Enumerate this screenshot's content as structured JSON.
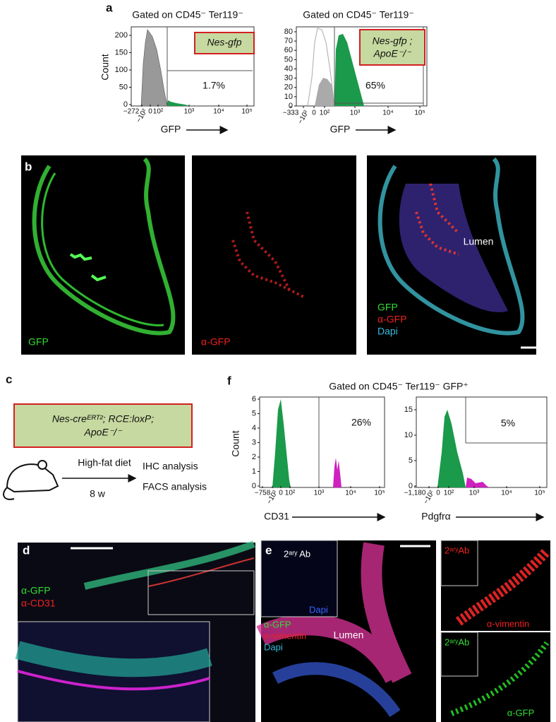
{
  "panel_a": {
    "label": "a",
    "left": {
      "title": "Gated on CD45⁻ Ter119⁻",
      "y_label": "Count",
      "yticks": [
        "0",
        "50",
        "100",
        "150",
        "200"
      ],
      "xticks": [
        "−272",
        "−10²",
        "0",
        "10²",
        "10³",
        "10⁴",
        "10⁵"
      ],
      "x_label": "GFP",
      "sample": "Nes-gfp",
      "gate": "1.7%"
    },
    "right": {
      "title": "Gated on CD45⁻ Ter119⁻",
      "yticks": [
        "0",
        "10",
        "20",
        "30",
        "40",
        "50",
        "60",
        "70",
        "80"
      ],
      "xticks": [
        "−333",
        "−10²",
        "0",
        "10²",
        "10³",
        "10⁴",
        "10⁵"
      ],
      "x_label": "GFP",
      "sample_line1": "Nes-gfp ;",
      "sample_line2": "ApoE⁻/⁻",
      "gate": "65%"
    }
  },
  "panel_b": {
    "label": "b",
    "image1_label": "GFP",
    "image2_label": "α-GFP",
    "lumen": "Lumen",
    "legend": [
      "GFP",
      "α-GFP",
      "Dapi"
    ]
  },
  "panel_c": {
    "label": "c",
    "genotype_line1": "Nes-creᴱᴿᵀ²; RCE:loxP;",
    "genotype_line2": "ApoE⁻/⁻",
    "diet": "High-fat diet",
    "duration": "8 w",
    "outcomes": [
      "IHC analysis",
      "FACS analysis"
    ]
  },
  "panel_f": {
    "label": "f",
    "title": "Gated on CD45⁻ Ter119⁻ GFP⁺",
    "left": {
      "y_label": "Count",
      "yticks": [
        "0",
        "1",
        "2",
        "3",
        "4",
        "5",
        "6"
      ],
      "xticks": [
        "−758",
        "−10²",
        "0",
        "10²",
        "10³",
        "10⁴",
        "10⁵"
      ],
      "x_label": "CD31",
      "gate": "26%"
    },
    "right": {
      "yticks": [
        "0",
        "5",
        "10",
        "15"
      ],
      "xticks": [
        "−1,180",
        "−10²",
        "0",
        "10²",
        "10³",
        "10⁴",
        "10⁵"
      ],
      "x_label": "Pdgfrα",
      "gate": "5%"
    }
  },
  "panel_d": {
    "label": "d",
    "legend": [
      "α-GFP",
      "α-CD31"
    ]
  },
  "panel_e": {
    "label": "e",
    "inset_title": "2ᵃʳʸ Ab",
    "inset_stain": "Dapi",
    "legend": [
      "α-GFP",
      "α-vimentin",
      "Dapi"
    ],
    "lumen": "Lumen",
    "side_top_title": "2ᵃʳʸAb",
    "side_top_stain": "α-vimentin",
    "side_bottom_title": "2ᵃʳʸAb",
    "side_bottom_stain": "α-GFP"
  }
}
